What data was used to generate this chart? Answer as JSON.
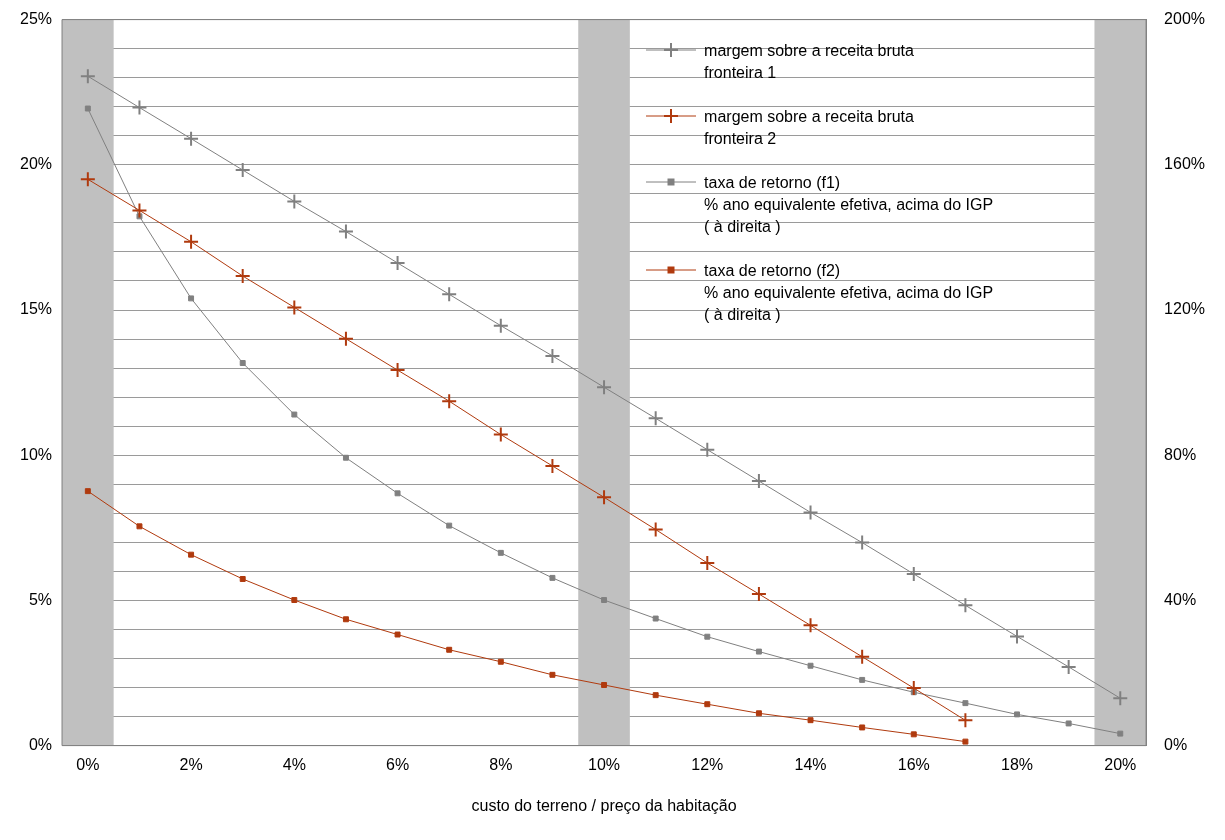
{
  "chart_data": {
    "type": "line",
    "xlabel": "custo do terreno / preço da habitação",
    "categories": [
      "0%",
      null,
      "2%",
      null,
      "4%",
      null,
      "6%",
      null,
      "8%",
      null,
      "10%",
      null,
      "12%",
      null,
      "14%",
      null,
      "16%",
      null,
      "18%",
      null,
      "20%"
    ],
    "series": [
      {
        "name": "margem sobre a receita bruta\nfronteira 1",
        "color": "#808080",
        "marker": "cross",
        "values": [
          23.05,
          21.97,
          20.9,
          19.82,
          18.74,
          17.7,
          16.62,
          15.54,
          14.46,
          13.42,
          12.34,
          11.27,
          10.19,
          9.11,
          8.03,
          6.99,
          5.91,
          4.83,
          3.76,
          2.71,
          1.63
        ]
      },
      {
        "name": "margem sobre a receita bruta\nfronteira 2",
        "color": "#b03a0e",
        "marker": "cross",
        "values": [
          19.5,
          18.43,
          17.35,
          16.17,
          15.09,
          14.01,
          12.93,
          11.86,
          10.71,
          9.63,
          8.55,
          7.44,
          6.29,
          5.22,
          4.14,
          3.06,
          1.98,
          0.87,
          null,
          null,
          null
        ]
      },
      {
        "name": "taxa de retorno (f1)\n% ano equivalente efetiva, acima do IGP\n( à direita )",
        "color": "#808080",
        "marker": "square",
        "axis": "y2",
        "values": [
          175.5,
          145.8,
          123.2,
          105.4,
          91.2,
          79.3,
          69.5,
          60.6,
          53.1,
          46.2,
          40.1,
          35.0,
          30.0,
          25.9,
          22.0,
          18.1,
          14.7,
          11.7,
          8.6,
          6.1,
          3.3
        ]
      },
      {
        "name": "taxa de retorno (f2)\n% ano equivalente efetiva, acima do IGP\n( à direita )",
        "color": "#b03a0e",
        "marker": "square",
        "axis": "y2",
        "values": [
          70.1,
          60.4,
          52.6,
          45.9,
          40.1,
          34.8,
          30.6,
          26.4,
          23.1,
          19.5,
          16.7,
          13.9,
          11.4,
          8.9,
          7.0,
          5.0,
          3.1,
          1.1,
          null,
          null,
          null
        ]
      }
    ],
    "ylim": [
      0,
      25
    ],
    "yticks": [
      {
        "value": 0,
        "label": "0%"
      },
      {
        "value": 1,
        "label": null
      },
      {
        "value": 2,
        "label": null
      },
      {
        "value": 3,
        "label": null
      },
      {
        "value": 4,
        "label": null
      },
      {
        "value": 5,
        "label": "5%"
      },
      {
        "value": 6,
        "label": null
      },
      {
        "value": 7,
        "label": null
      },
      {
        "value": 8,
        "label": null
      },
      {
        "value": 9,
        "label": null
      },
      {
        "value": 10,
        "label": "10%"
      },
      {
        "value": 11,
        "label": null
      },
      {
        "value": 12,
        "label": null
      },
      {
        "value": 13,
        "label": null
      },
      {
        "value": 14,
        "label": null
      },
      {
        "value": 15,
        "label": "15%"
      },
      {
        "value": 16,
        "label": null
      },
      {
        "value": 17,
        "label": null
      },
      {
        "value": 18,
        "label": null
      },
      {
        "value": 19,
        "label": null
      },
      {
        "value": 20,
        "label": "20%"
      },
      {
        "value": 21,
        "label": null
      },
      {
        "value": 22,
        "label": null
      },
      {
        "value": 23,
        "label": null
      },
      {
        "value": 24,
        "label": null
      },
      {
        "value": 25,
        "label": "25%"
      }
    ],
    "y2lim": [
      0,
      200
    ],
    "y2ticks": [
      {
        "value": 0,
        "label": "0%"
      },
      {
        "value": 40,
        "label": "40%"
      },
      {
        "value": 80,
        "label": "80%"
      },
      {
        "value": 120,
        "label": "120%"
      },
      {
        "value": 160,
        "label": "160%"
      },
      {
        "value": 200,
        "label": "200%"
      }
    ],
    "bands": [
      {
        "axis": "x",
        "from": "0%",
        "to": "0%",
        "color": "#c0c0c0"
      },
      {
        "axis": "x",
        "from": "10%",
        "to": "10%",
        "color": "#c0c0c0"
      },
      {
        "axis": "x",
        "from": "20%",
        "to": "20%",
        "color": "#c0c0c0"
      }
    ],
    "grid": "y",
    "legend": "top right",
    "line_style": "solid"
  }
}
